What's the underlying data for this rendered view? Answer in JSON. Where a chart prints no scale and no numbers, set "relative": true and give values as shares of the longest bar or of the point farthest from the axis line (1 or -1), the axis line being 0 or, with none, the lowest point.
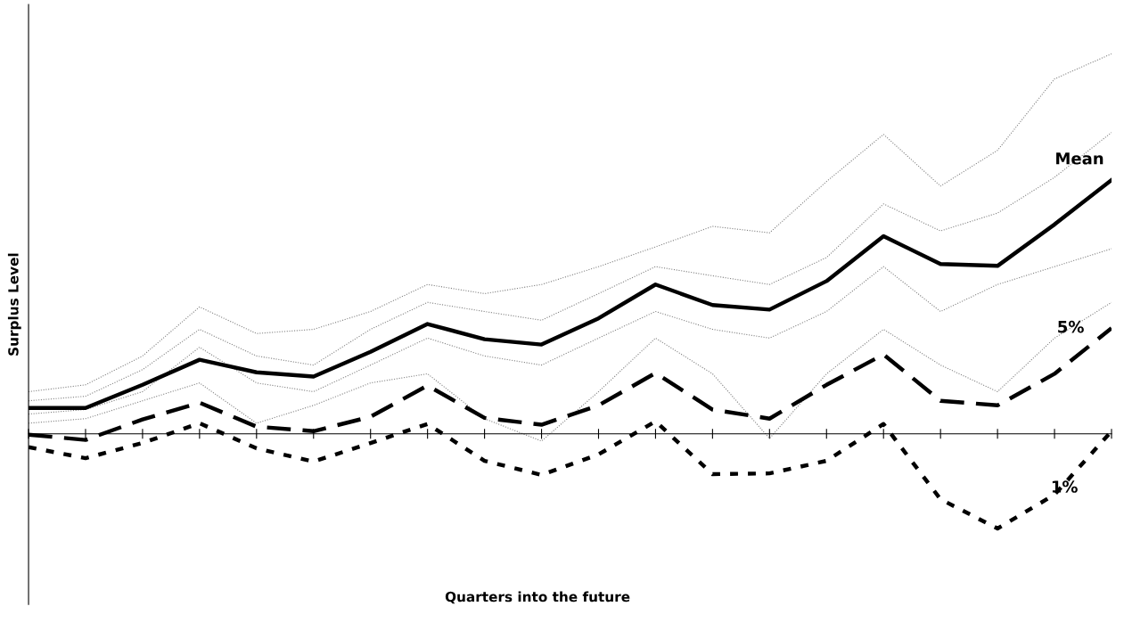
{
  "chart_data": {
    "type": "line",
    "relative": true,
    "xlabel": "Quarters into the future",
    "ylabel": "Surplus Level",
    "grid": false,
    "legend": false,
    "marker": "none",
    "categories": [
      null,
      null,
      null,
      null,
      null,
      null,
      null,
      null,
      null,
      null,
      null,
      null,
      null,
      null,
      null,
      null,
      null,
      null,
      null,
      null
    ],
    "series": [
      {
        "color": "#808080",
        "line_style": "dotted",
        "values": [
          0.111,
          0.129,
          0.205,
          0.334,
          0.264,
          0.275,
          0.322,
          0.393,
          0.369,
          0.393,
          0.44,
          0.492,
          0.546,
          0.529,
          0.664,
          0.788,
          0.652,
          0.746,
          0.934,
          1
        ]
      },
      {
        "color": "#808080",
        "line_style": "dotted",
        "values": [
          0.087,
          0.099,
          0.169,
          0.275,
          0.205,
          0.181,
          0.275,
          0.346,
          0.322,
          0.299,
          0.369,
          0.44,
          0.416,
          0.393,
          0.464,
          0.605,
          0.534,
          0.581,
          0.675,
          0.793
        ]
      },
      {
        "color": "#808080",
        "line_style": "dotted",
        "values": [
          0.052,
          0.064,
          0.111,
          0.228,
          0.134,
          0.111,
          0.181,
          0.252,
          0.205,
          0.181,
          0.252,
          0.322,
          0.275,
          0.252,
          0.322,
          0.44,
          0.322,
          0.393,
          0.44,
          0.487
        ]
      },
      {
        "color": "#808080",
        "line_style": "dotted",
        "values": [
          0.028,
          0.04,
          0.087,
          0.134,
          0.028,
          0.075,
          0.134,
          0.158,
          0.04,
          -0.019,
          0.111,
          0.252,
          0.158,
          -0.012,
          0.158,
          0.275,
          0.181,
          0.111,
          0.252,
          0.346
        ]
      },
      {
        "name": "Mean",
        "color": "#000000",
        "line_style": "solid",
        "values": [
          0.068,
          0.068,
          0.129,
          0.195,
          0.162,
          0.151,
          0.216,
          0.289,
          0.249,
          0.235,
          0.304,
          0.393,
          0.339,
          0.327,
          0.402,
          0.52,
          0.447,
          0.442,
          0.551,
          0.668
        ]
      },
      {
        "name": "5%",
        "color": "#000000",
        "line_style": "dashed",
        "values": [
          -0.002,
          -0.016,
          0.038,
          0.082,
          0.019,
          0.007,
          0.045,
          0.127,
          0.042,
          0.024,
          0.075,
          0.16,
          0.064,
          0.04,
          0.129,
          0.209,
          0.087,
          0.075,
          0.158,
          0.278
        ]
      },
      {
        "name": "1%",
        "color": "#000000",
        "line_style": "dotted",
        "values": [
          -0.035,
          -0.064,
          -0.024,
          0.028,
          -0.038,
          -0.073,
          -0.024,
          0.026,
          -0.071,
          -0.108,
          -0.054,
          0.033,
          -0.106,
          -0.104,
          -0.071,
          0.026,
          -0.172,
          -0.249,
          -0.16,
          0.007
        ]
      }
    ]
  }
}
